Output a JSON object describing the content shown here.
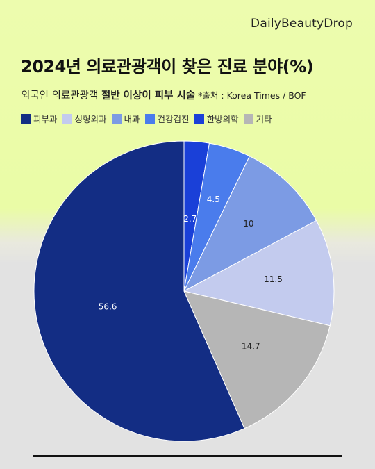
{
  "brand": "DailyBeautyDrop",
  "title": "2024년 의료관광객이 찾은 진료 분야(%)",
  "subtitle": {
    "plain": "외국인 의료관광객 ",
    "highlight": "절반 이상이 피부 시술",
    "source": "*출처 : Korea Times / BOF"
  },
  "chart_data": {
    "type": "pie",
    "title": "2024년 의료관광객이 찾은 진료 분야(%)",
    "legend_position": "top-left",
    "slices": [
      {
        "label": "한방의학",
        "value": 2.7,
        "color": "#1a40d8"
      },
      {
        "label": "건강검진",
        "value": 4.5,
        "color": "#4a7cec"
      },
      {
        "label": "내과",
        "value": 10,
        "color": "#7c9be4"
      },
      {
        "label": "성형외과",
        "value": 11.5,
        "color": "#c3cbee"
      },
      {
        "label": "기타",
        "value": 14.7,
        "color": "#b6b6b6"
      },
      {
        "label": "피부과",
        "value": 56.6,
        "color": "#132d84"
      }
    ],
    "label_colors": {
      "dark_slice": "#ffffff",
      "light_slice": "#222222"
    }
  },
  "legend": [
    {
      "label": "피부과",
      "color": "#132d84"
    },
    {
      "label": "성형외과",
      "color": "#c3cbee"
    },
    {
      "label": "내과",
      "color": "#7c9be4"
    },
    {
      "label": "건강검진",
      "color": "#4a7cec"
    },
    {
      "label": "한방의학",
      "color": "#1a40d8"
    },
    {
      "label": "기타",
      "color": "#b6b6b6"
    }
  ]
}
